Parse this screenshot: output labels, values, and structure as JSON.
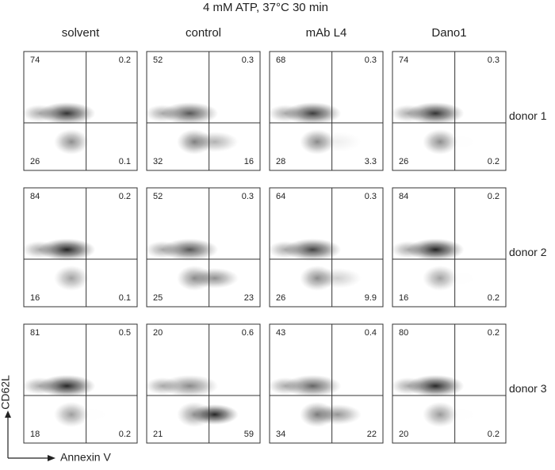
{
  "title": "4 mM ATP, 37°C 30 min",
  "columns": [
    "solvent",
    "control",
    "mAb L4",
    "Dano1"
  ],
  "rows": [
    {
      "label": "donor 1",
      "panels": [
        [
          74,
          0.2,
          26,
          0.1
        ],
        [
          52,
          0.3,
          32,
          16
        ],
        [
          68,
          0.3,
          28,
          3.3
        ],
        [
          74,
          0.3,
          26,
          0.2
        ]
      ]
    },
    {
      "label": "donor 2",
      "panels": [
        [
          84,
          0.2,
          16,
          0.1
        ],
        [
          52,
          0.3,
          25,
          23
        ],
        [
          64,
          0.3,
          26,
          9.9
        ],
        [
          84,
          0.2,
          16,
          0.2
        ]
      ]
    },
    {
      "label": "donor 3",
      "panels": [
        [
          81,
          0.5,
          18,
          0.2
        ],
        [
          20,
          0.6,
          21,
          59
        ],
        [
          43,
          0.4,
          34,
          22
        ],
        [
          80,
          0.2,
          20,
          0.2
        ]
      ]
    }
  ],
  "y_axis_label": "CD62L",
  "x_axis_label": "Annexin V"
}
